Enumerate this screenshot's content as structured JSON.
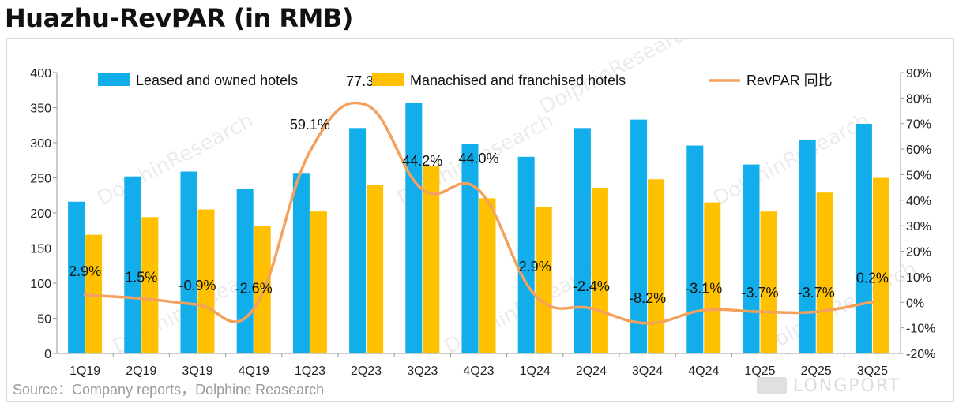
{
  "title": "Huazhu-RevPAR (in RMB)",
  "source": "Source：Company reports，Dolphine Reasearch",
  "watermark": "DolphinResearch",
  "corner_logo": {
    "icon": "longport-logo-icon",
    "text": "LONGPORT"
  },
  "colors": {
    "leased": "#12AEEB",
    "franchised": "#FFC000",
    "revpar_line": "#F4A15D"
  },
  "chart_data": {
    "type": "bar",
    "categories": [
      "1Q19",
      "2Q19",
      "3Q19",
      "4Q19",
      "1Q23",
      "2Q23",
      "3Q23",
      "4Q23",
      "1Q24",
      "2Q24",
      "3Q24",
      "4Q24",
      "1Q25",
      "2Q25",
      "3Q25"
    ],
    "series": [
      {
        "name": "Leased and owned hotels",
        "type": "bar",
        "axis": "left",
        "values": [
          216,
          252,
          259,
          234,
          257,
          321,
          357,
          298,
          280,
          321,
          333,
          296,
          269,
          304,
          327
        ]
      },
      {
        "name": "Manachised and franchised hotels",
        "type": "bar",
        "axis": "left",
        "values": [
          169,
          194,
          205,
          181,
          202,
          240,
          267,
          221,
          208,
          236,
          248,
          215,
          202,
          229,
          250
        ]
      },
      {
        "name": "RevPAR 同比",
        "type": "line",
        "axis": "right",
        "values": [
          2.9,
          1.5,
          -0.9,
          -2.6,
          59.1,
          77.3,
          44.2,
          44.0,
          2.9,
          -2.4,
          -8.2,
          -3.1,
          -3.7,
          -3.7,
          0.2
        ],
        "labels": [
          "2.9%",
          "1.5%",
          "-0.9%",
          "-2.6%",
          "59.1%",
          "77.3%",
          "44.2%",
          "44.0%",
          "2.9%",
          "-2.4%",
          "-8.2%",
          "-3.1%",
          "-3.7%",
          "-3.7%",
          "0.2%"
        ]
      }
    ],
    "y_left": {
      "min": 0,
      "max": 400,
      "step": 50,
      "ticks": [
        "0",
        "50",
        "100",
        "150",
        "200",
        "250",
        "300",
        "350",
        "400"
      ]
    },
    "y_right": {
      "min": -20,
      "max": 90,
      "step": 10,
      "ticks": [
        "-20%",
        "-10%",
        "0%",
        "10%",
        "20%",
        "30%",
        "40%",
        "50%",
        "60%",
        "70%",
        "80%",
        "90%"
      ]
    },
    "grid": false,
    "legend_position": "top"
  }
}
